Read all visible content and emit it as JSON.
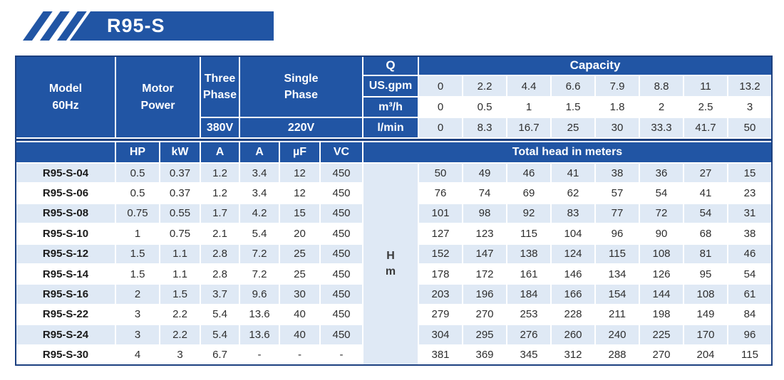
{
  "banner": {
    "title": "R95-S"
  },
  "colors": {
    "primary_blue": "#2155a4",
    "dark_navy_border": "#1c4080",
    "row_light_blue": "#dfe9f5",
    "text_dark": "#2e2e2e",
    "header_text": "#ffffff"
  },
  "table": {
    "header": {
      "model_line1": "Model",
      "model_line2": "60Hz",
      "motor_line1": "Motor",
      "motor_line2": "Power",
      "three_phase_line1": "Three",
      "three_phase_line2": "Phase",
      "three_phase_voltage": "380V",
      "single_phase_line1": "Single",
      "single_phase_line2": "Phase",
      "single_phase_voltage": "220V",
      "q_label": "Q",
      "capacity_label": "Capacity",
      "flow_rows": [
        {
          "unit": "US.gpm",
          "values": [
            "0",
            "2.2",
            "4.4",
            "6.6",
            "7.9",
            "8.8",
            "11",
            "13.2"
          ]
        },
        {
          "unit": "m³/h",
          "values": [
            "0",
            "0.5",
            "1",
            "1.5",
            "1.8",
            "2",
            "2.5",
            "3"
          ]
        },
        {
          "unit": "l/min",
          "values": [
            "0",
            "8.3",
            "16.7",
            "25",
            "30",
            "33.3",
            "41.7",
            "50"
          ]
        }
      ],
      "sub_columns": [
        "HP",
        "kW",
        "A",
        "A",
        "µF",
        "VC"
      ],
      "total_head_label": "Total head in meters"
    },
    "h_axis": {
      "line1": "H",
      "line2": "m"
    },
    "rows": [
      {
        "model": "R95-S-04",
        "hp": "0.5",
        "kw": "0.37",
        "a3": "1.2",
        "a1": "3.4",
        "uf": "12",
        "vc": "450",
        "head": [
          "50",
          "49",
          "46",
          "41",
          "38",
          "36",
          "27",
          "15"
        ]
      },
      {
        "model": "R95-S-06",
        "hp": "0.5",
        "kw": "0.37",
        "a3": "1.2",
        "a1": "3.4",
        "uf": "12",
        "vc": "450",
        "head": [
          "76",
          "74",
          "69",
          "62",
          "57",
          "54",
          "41",
          "23"
        ]
      },
      {
        "model": "R95-S-08",
        "hp": "0.75",
        "kw": "0.55",
        "a3": "1.7",
        "a1": "4.2",
        "uf": "15",
        "vc": "450",
        "head": [
          "101",
          "98",
          "92",
          "83",
          "77",
          "72",
          "54",
          "31"
        ]
      },
      {
        "model": "R95-S-10",
        "hp": "1",
        "kw": "0.75",
        "a3": "2.1",
        "a1": "5.4",
        "uf": "20",
        "vc": "450",
        "head": [
          "127",
          "123",
          "115",
          "104",
          "96",
          "90",
          "68",
          "38"
        ]
      },
      {
        "model": "R95-S-12",
        "hp": "1.5",
        "kw": "1.1",
        "a3": "2.8",
        "a1": "7.2",
        "uf": "25",
        "vc": "450",
        "head": [
          "152",
          "147",
          "138",
          "124",
          "115",
          "108",
          "81",
          "46"
        ]
      },
      {
        "model": "R95-S-14",
        "hp": "1.5",
        "kw": "1.1",
        "a3": "2.8",
        "a1": "7.2",
        "uf": "25",
        "vc": "450",
        "head": [
          "178",
          "172",
          "161",
          "146",
          "134",
          "126",
          "95",
          "54"
        ]
      },
      {
        "model": "R95-S-16",
        "hp": "2",
        "kw": "1.5",
        "a3": "3.7",
        "a1": "9.6",
        "uf": "30",
        "vc": "450",
        "head": [
          "203",
          "196",
          "184",
          "166",
          "154",
          "144",
          "108",
          "61"
        ]
      },
      {
        "model": "R95-S-22",
        "hp": "3",
        "kw": "2.2",
        "a3": "5.4",
        "a1": "13.6",
        "uf": "40",
        "vc": "450",
        "head": [
          "279",
          "270",
          "253",
          "228",
          "211",
          "198",
          "149",
          "84"
        ]
      },
      {
        "model": "R95-S-24",
        "hp": "3",
        "kw": "2.2",
        "a3": "5.4",
        "a1": "13.6",
        "uf": "40",
        "vc": "450",
        "head": [
          "304",
          "295",
          "276",
          "260",
          "240",
          "225",
          "170",
          "96"
        ]
      },
      {
        "model": "R95-S-30",
        "hp": "4",
        "kw": "3",
        "a3": "6.7",
        "a1": "-",
        "uf": "-",
        "vc": "-",
        "head": [
          "381",
          "369",
          "345",
          "312",
          "288",
          "270",
          "204",
          "115"
        ]
      }
    ]
  }
}
